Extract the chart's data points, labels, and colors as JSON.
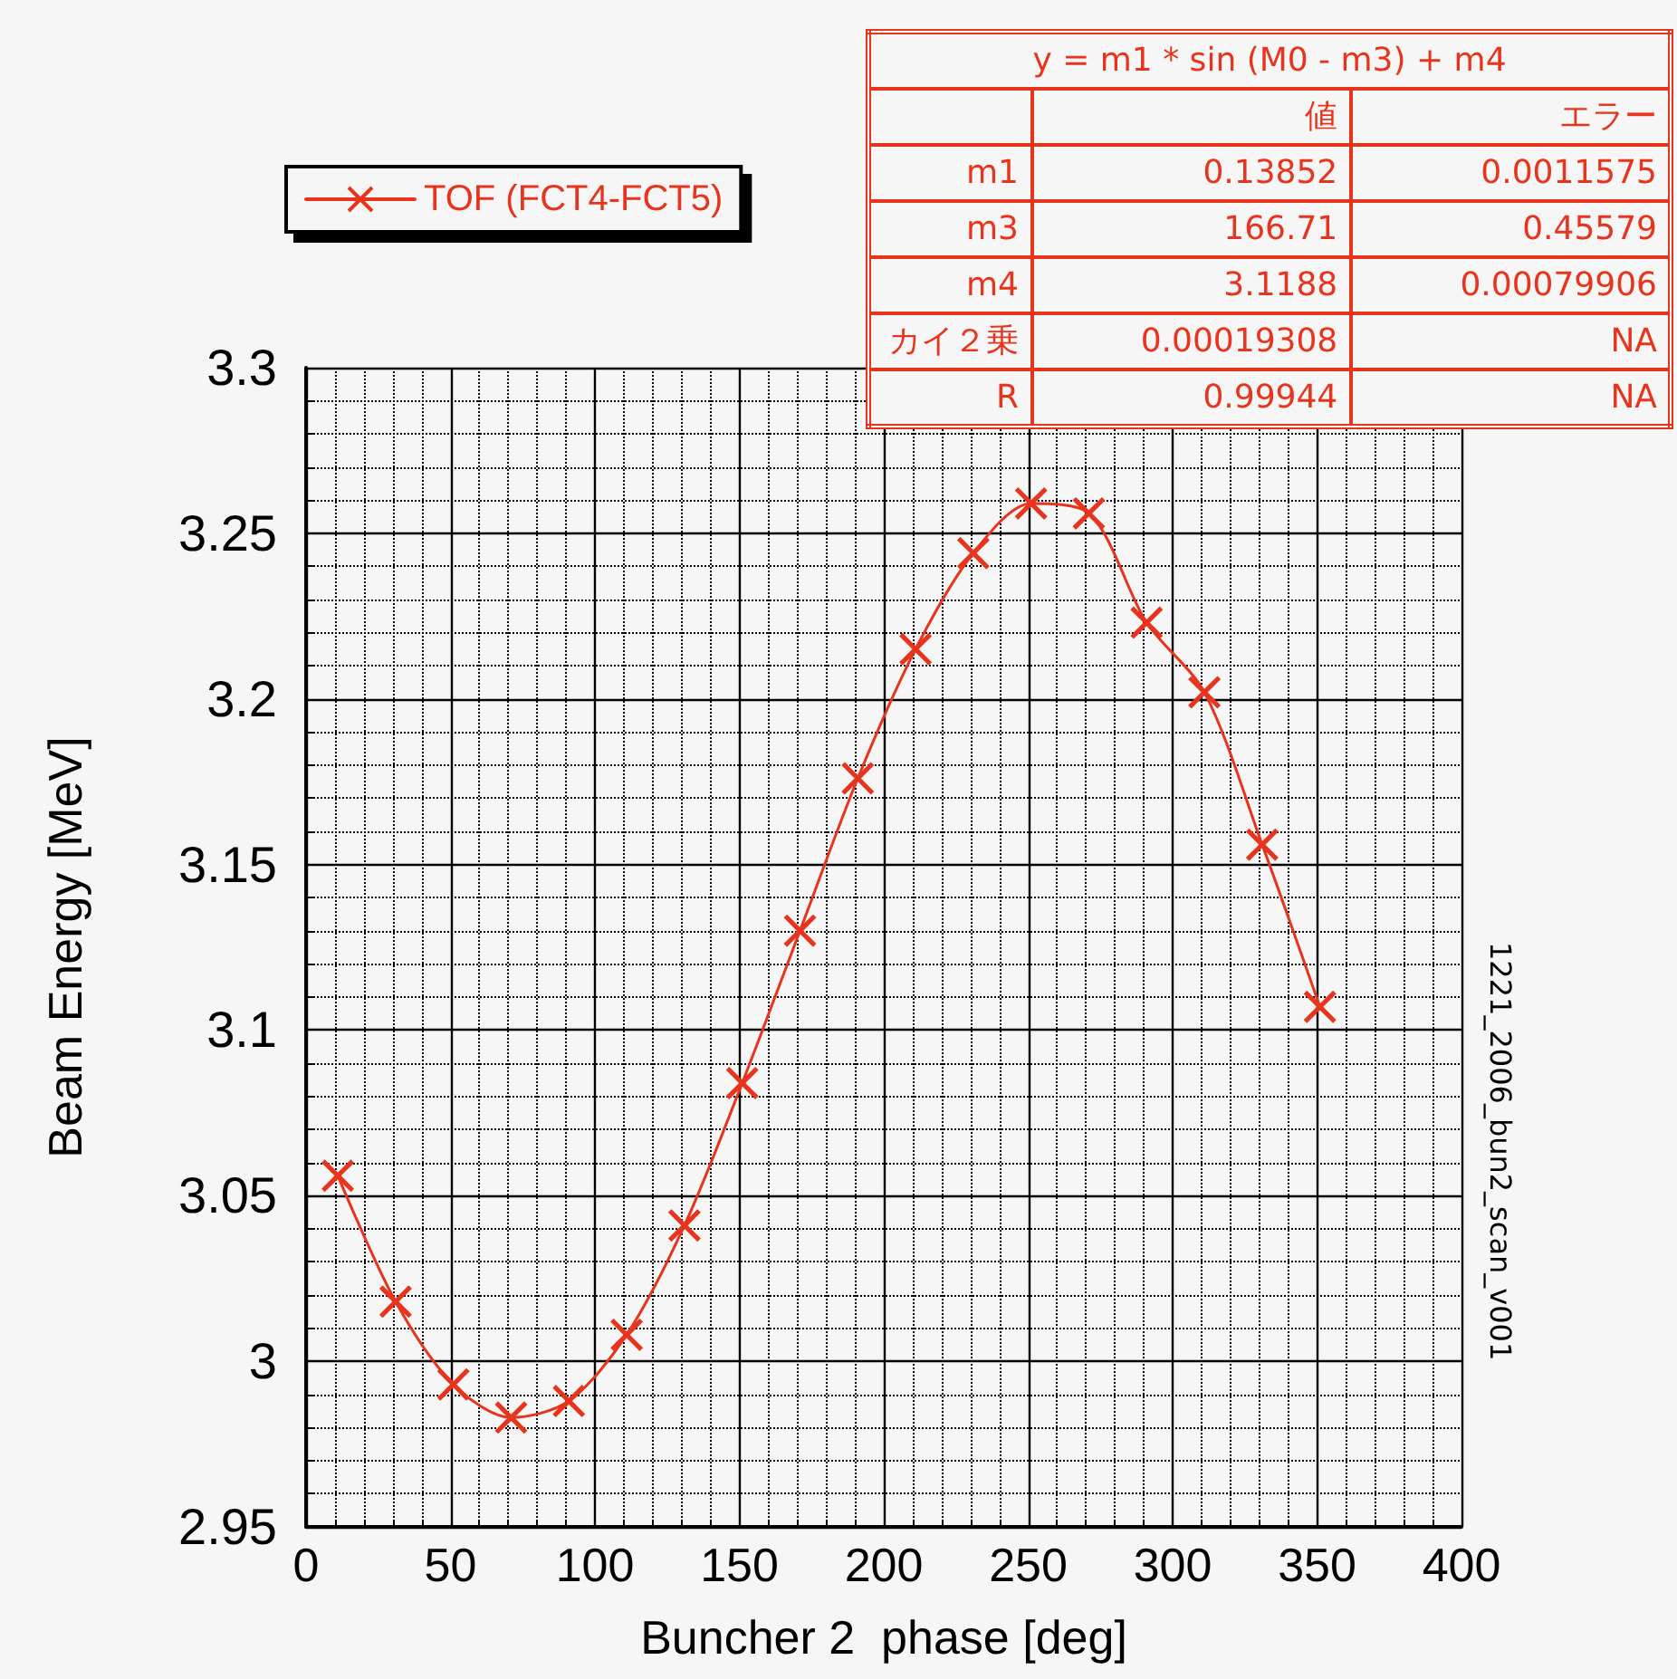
{
  "chart_data": {
    "type": "line",
    "xlabel": "Buncher 2  phase [deg]",
    "ylabel": "Beam Energy [MeV]",
    "x": [
      11,
      31,
      51,
      71,
      91,
      111,
      131,
      151,
      171,
      191,
      211,
      231,
      251,
      271,
      291,
      311,
      331,
      351
    ],
    "series": [
      {
        "name": "TOF (FCT4-FCT5)",
        "color": "#e8341c",
        "values": [
          3.056,
          3.018,
          2.993,
          2.983,
          2.988,
          3.008,
          3.041,
          3.084,
          3.13,
          3.176,
          3.215,
          3.244,
          3.259,
          3.256,
          3.223,
          3.202,
          3.156,
          3.107
        ]
      }
    ],
    "xlim": [
      0,
      400
    ],
    "xticks": [
      0,
      50,
      100,
      150,
      200,
      250,
      300,
      350,
      400
    ],
    "ylim": [
      2.95,
      3.3
    ],
    "yticks": [
      2.95,
      3,
      3.05,
      3.1,
      3.15,
      3.2,
      3.25,
      3.3
    ],
    "grid": true,
    "legend": "top left",
    "marker": "cross",
    "line_style": "solid",
    "annotations": [
      "y = m1 * sin (M0 - m3) + m4",
      "値",
      "エラー",
      "m1",
      "0.13852",
      "0.0011575",
      "m3",
      "166.71",
      "0.45579",
      "m4",
      "3.1188",
      "0.00079906",
      "カイ２乗",
      "0.00019308",
      "NA",
      "R",
      "0.99944",
      "NA",
      "1221_2006_bun2_scan_v001"
    ]
  }
}
